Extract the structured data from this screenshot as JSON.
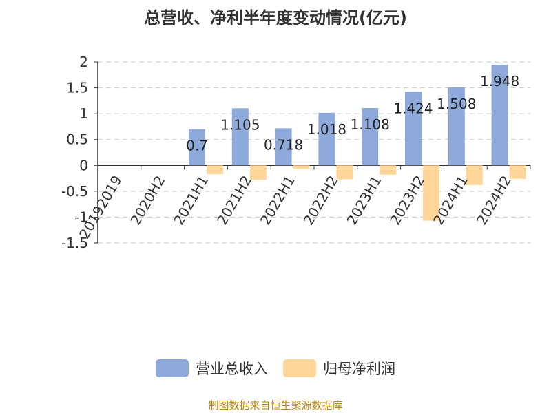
{
  "source": "制图数据来自恒生聚源数据库",
  "colors": {
    "revenue": "#8eaadb",
    "net_profit": "#ffd699",
    "grid": "#c8c8c8",
    "axis": "#333333",
    "source": "#b8860b"
  },
  "chart_data": {
    "type": "bar",
    "title": "总营收、净利半年度变动情况(亿元)",
    "xlabel": "",
    "ylabel": "",
    "ylim": [
      -1.5,
      2
    ],
    "yticks": [
      "2",
      "1.5",
      "1",
      "0.5",
      "0",
      "-0.5",
      "-1",
      "-1.5"
    ],
    "grid": true,
    "legend_position": "bottom",
    "categories": [
      "20192019",
      "2020H2",
      "2021H1",
      "2021H2",
      "2022H1",
      "2022H2",
      "2023H1",
      "2023H2",
      "2024H1",
      "2024H2"
    ],
    "series": [
      {
        "name": "营业总收入",
        "values": [
          null,
          null,
          0.7,
          1.105,
          0.718,
          1.018,
          1.108,
          1.424,
          1.508,
          1.948
        ],
        "labels": [
          "",
          "",
          "0.7",
          "1.105",
          "0.718",
          "1.018",
          "1.108",
          "1.424",
          "1.508",
          "1.948"
        ]
      },
      {
        "name": "归母净利润",
        "values": [
          null,
          null,
          -0.17,
          -0.28,
          -0.07,
          -0.27,
          -0.18,
          -1.07,
          -0.38,
          -0.26
        ]
      }
    ]
  }
}
